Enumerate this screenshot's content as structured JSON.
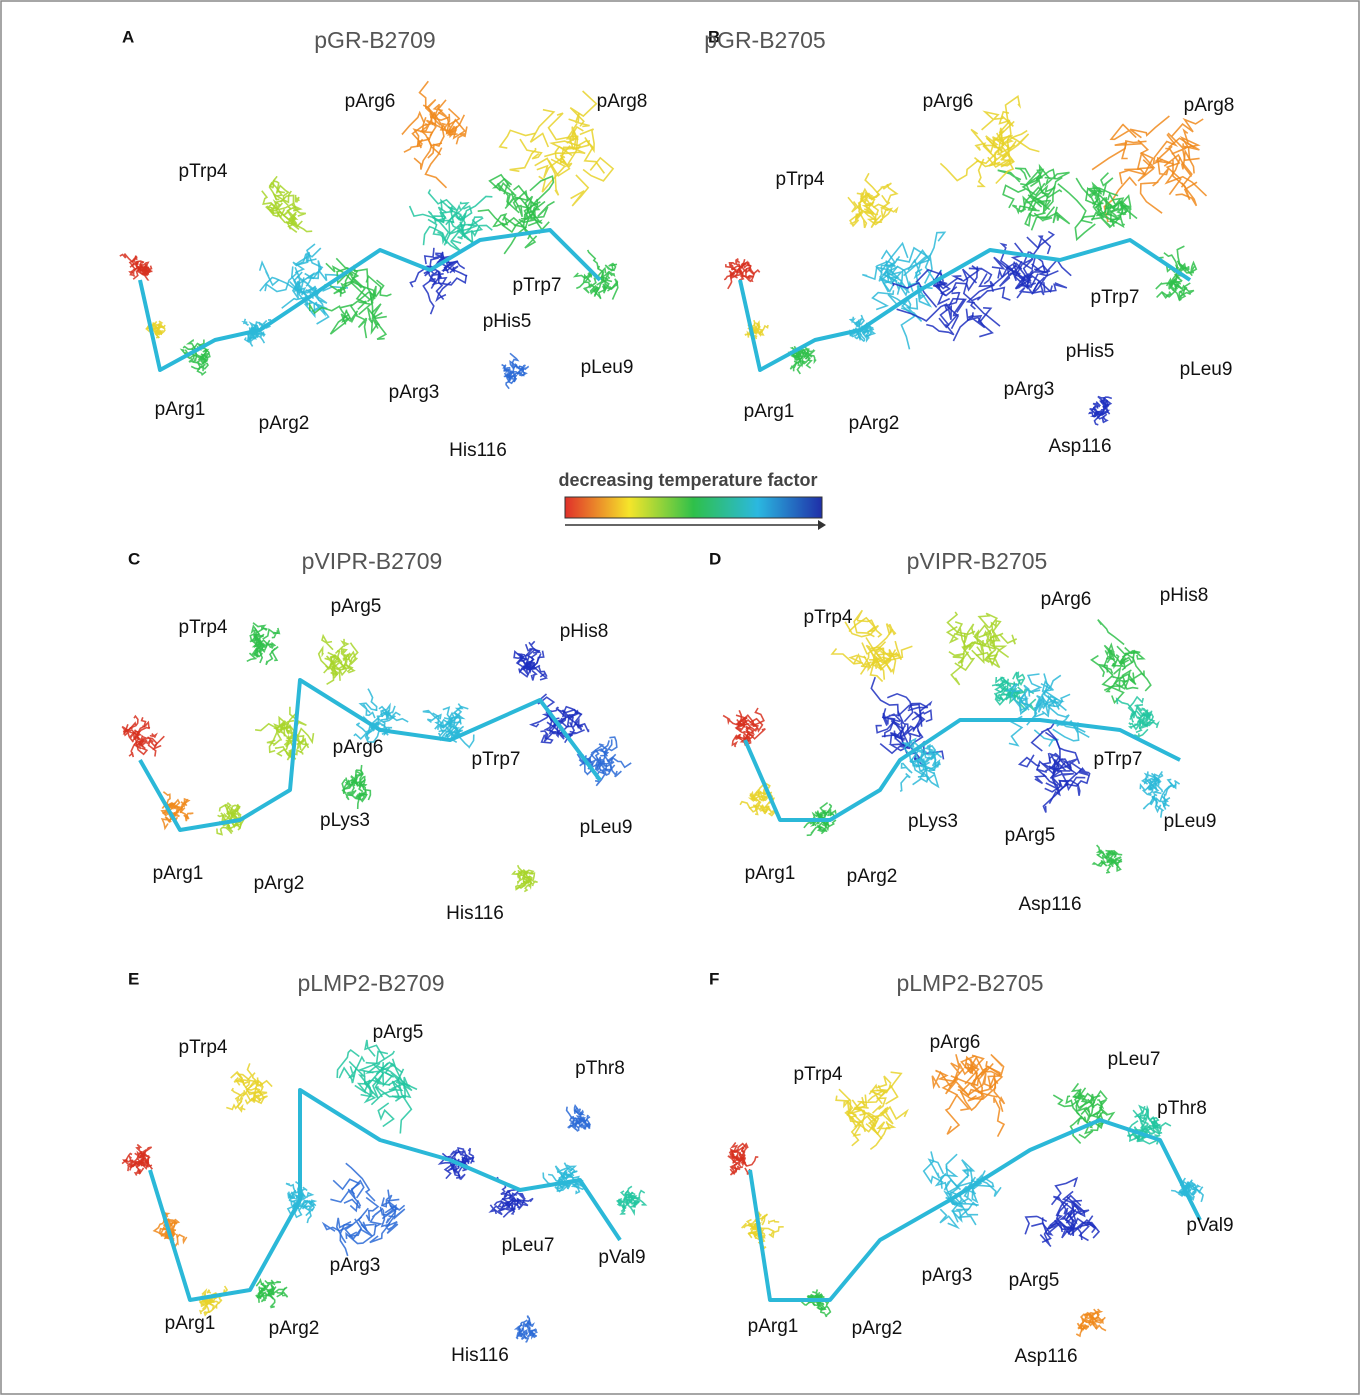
{
  "figure": {
    "legend": "decreasing temperature factor",
    "panels": [
      {
        "letter": "A",
        "title": "pGR-B2709",
        "labels": [
          "pArg6",
          "pArg8",
          "pTrp4",
          "pTrp7",
          "pHis5",
          "pLeu9",
          "pArg3",
          "pArg1",
          "pArg2",
          "His116"
        ]
      },
      {
        "letter": "B",
        "title": "pGR-B2705",
        "labels": [
          "pArg6",
          "pArg8",
          "pTrp4",
          "pTrp7",
          "pHis5",
          "pLeu9",
          "pArg3",
          "pArg1",
          "pArg2",
          "Asp116"
        ]
      },
      {
        "letter": "C",
        "title": "pVIPR-B2709",
        "labels": [
          "pArg5",
          "pHis8",
          "pTrp4",
          "pArg6",
          "pTrp7",
          "pLys3",
          "pLeu9",
          "pArg1",
          "pArg2",
          "His116"
        ]
      },
      {
        "letter": "D",
        "title": "pVIPR-B2705",
        "labels": [
          "pTrp4",
          "pArg6",
          "pHis8",
          "pTrp7",
          "pLys3",
          "pLeu9",
          "pArg5",
          "pArg1",
          "pArg2",
          "Asp116"
        ]
      },
      {
        "letter": "E",
        "title": "pLMP2-B2709",
        "labels": [
          "pArg5",
          "pTrp4",
          "pThr8",
          "pLeu7",
          "pVal9",
          "pArg3",
          "pArg1",
          "pArg2",
          "His116"
        ]
      },
      {
        "letter": "F",
        "title": "pLMP2-B2705",
        "labels": [
          "pArg6",
          "pLeu7",
          "pTrp4",
          "pThr8",
          "pVal9",
          "pArg3",
          "pArg5",
          "pArg1",
          "pArg2",
          "Asp116"
        ]
      }
    ]
  }
}
